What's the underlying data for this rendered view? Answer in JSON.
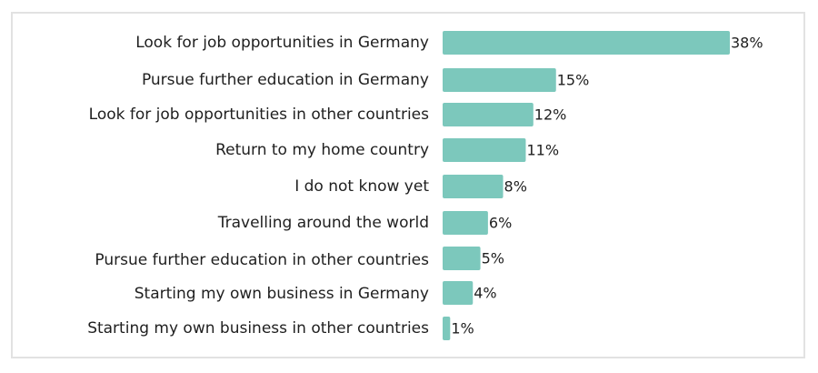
{
  "chart_data": {
    "type": "bar",
    "orientation": "horizontal",
    "categories": [
      "Look for job opportunities in Germany",
      "Pursue further education in Germany",
      "Look for job opportunities in other countries",
      "Return to my home country",
      "I do not know yet",
      "Travelling around the world",
      "Pursue further education in other countries",
      "Starting my own business in Germany",
      "Starting my own business in other countries"
    ],
    "values": [
      38,
      15,
      12,
      11,
      8,
      6,
      5,
      4,
      1
    ],
    "value_labels": [
      "38%",
      "15%",
      "12%",
      "11%",
      "8%",
      "6%",
      "5%",
      "4%",
      "1%"
    ],
    "unit": "%",
    "title": "",
    "xlabel": "",
    "ylabel": "",
    "xlim": [
      0,
      38
    ],
    "grid": false,
    "legend": "none",
    "bar_color": "#7cc8bc"
  }
}
